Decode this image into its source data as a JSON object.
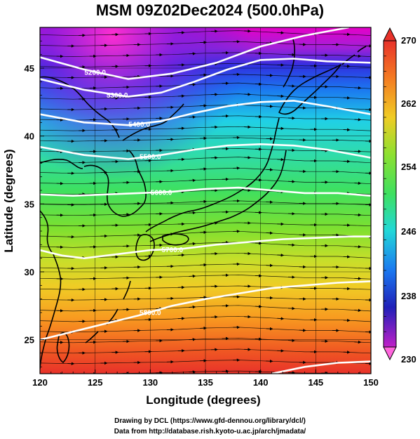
{
  "title": "MSM 09Z02Dec2024 (500.0hPa)",
  "map": {
    "xlabel": "Longitude (degrees)",
    "ylabel": "Latitude  (degrees)",
    "xlim": [
      120,
      150
    ],
    "ylim": [
      22.5,
      48
    ],
    "xticks": [
      "120",
      "125",
      "130",
      "135",
      "140",
      "145",
      "150"
    ],
    "yticks": [
      "25",
      "30",
      "35",
      "40",
      "45"
    ],
    "grid": true,
    "contours": [
      {
        "label": "5200.0",
        "lat_at_lon": [
          [
            120,
            45.8
          ],
          [
            124,
            44.9
          ],
          [
            128,
            44.2
          ],
          [
            132,
            44.6
          ],
          [
            136,
            45.4
          ],
          [
            140,
            46.6
          ],
          [
            144,
            47.4
          ],
          [
            148,
            48.0
          ]
        ]
      },
      {
        "label": "5300.0",
        "lat_at_lon": [
          [
            120,
            44.2
          ],
          [
            124,
            43.4
          ],
          [
            128,
            42.9
          ],
          [
            131,
            43.2
          ],
          [
            134,
            44.0
          ],
          [
            137,
            44.9
          ],
          [
            140,
            45.6
          ],
          [
            143,
            45.7
          ],
          [
            146,
            45.5
          ],
          [
            150,
            45.4
          ]
        ]
      },
      {
        "label": "5400.0",
        "lat_at_lon": [
          [
            120,
            41.6
          ],
          [
            124,
            41.0
          ],
          [
            128,
            40.8
          ],
          [
            131,
            41.1
          ],
          [
            134,
            41.7
          ],
          [
            137,
            42.2
          ],
          [
            140,
            42.5
          ],
          [
            143,
            42.6
          ],
          [
            146,
            42.2
          ],
          [
            150,
            41.6
          ]
        ]
      },
      {
        "label": "5500.0",
        "lat_at_lon": [
          [
            120,
            39.2
          ],
          [
            124,
            38.6
          ],
          [
            128,
            38.3
          ],
          [
            131,
            38.6
          ],
          [
            134,
            39.0
          ],
          [
            137,
            39.3
          ],
          [
            140,
            39.4
          ],
          [
            143,
            39.3
          ],
          [
            146,
            39.0
          ],
          [
            150,
            38.4
          ]
        ]
      },
      {
        "label": "5600.0",
        "lat_at_lon": [
          [
            120,
            35.7
          ],
          [
            123,
            35.6
          ],
          [
            126,
            35.7
          ],
          [
            129,
            35.8
          ],
          [
            132,
            35.9
          ],
          [
            135,
            36.1
          ],
          [
            138,
            36.2
          ],
          [
            141,
            36.0
          ],
          [
            144,
            35.8
          ],
          [
            147,
            35.8
          ],
          [
            150,
            35.6
          ]
        ]
      },
      {
        "label": "5700.0",
        "lat_at_lon": [
          [
            120,
            31.6
          ],
          [
            122,
            31.2
          ],
          [
            124,
            31.0
          ],
          [
            127,
            31.3
          ],
          [
            130,
            31.6
          ],
          [
            133,
            31.7
          ],
          [
            136,
            32.0
          ],
          [
            139,
            32.2
          ],
          [
            142,
            32.4
          ],
          [
            145,
            32.5
          ],
          [
            148,
            32.6
          ],
          [
            150,
            32.6
          ]
        ]
      },
      {
        "label": "5800.0",
        "lat_at_lon": [
          [
            120,
            25.0
          ],
          [
            123,
            25.6
          ],
          [
            126,
            26.2
          ],
          [
            129,
            26.8
          ],
          [
            132,
            27.5
          ],
          [
            135,
            28.0
          ],
          [
            138,
            28.4
          ],
          [
            141,
            28.8
          ],
          [
            144,
            29.0
          ],
          [
            147,
            29.2
          ],
          [
            150,
            29.3
          ]
        ]
      },
      {
        "label": "",
        "lat_at_lon": [
          [
            141,
            22.5
          ],
          [
            144,
            23.0
          ],
          [
            147,
            23.3
          ],
          [
            150,
            23.4
          ]
        ]
      }
    ]
  },
  "colorbar": {
    "labels": [
      "270",
      "262",
      "254",
      "246",
      "238",
      "230"
    ],
    "min": 230,
    "max": 270
  },
  "credits": [
    "Drawing by DCL (https://www.gfd-dennou.org/library/dcl/)",
    "Data from http://database.rish.kyoto-u.ac.jp/arch/jmadata/"
  ]
}
